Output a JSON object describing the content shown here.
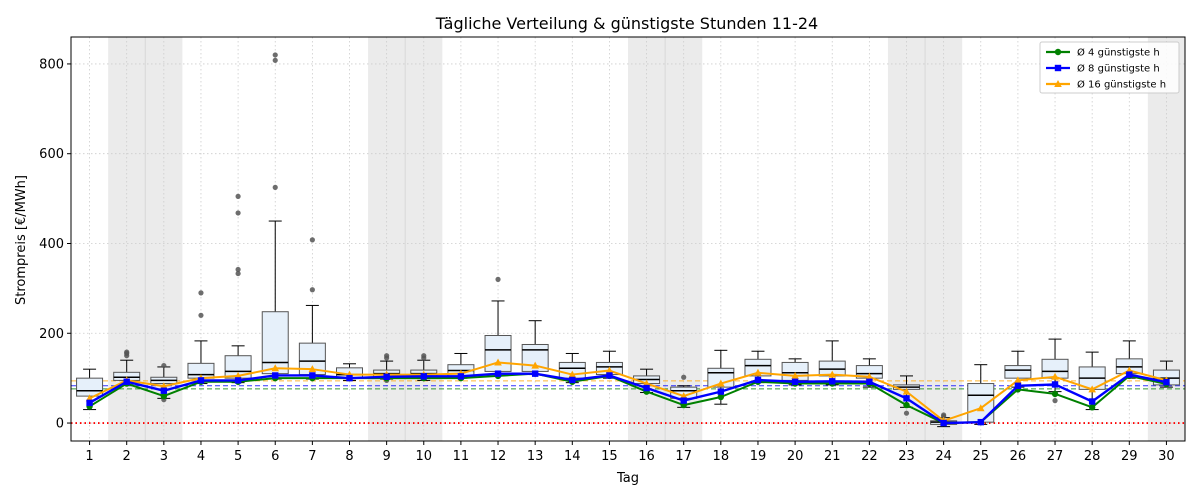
{
  "chart_data": {
    "type": "box",
    "title": "Tägliche Verteilung & günstigste Stunden 11-24",
    "xlabel": "Tag",
    "ylabel": "Strompreis [€/MWh]",
    "xlim": [
      0.5,
      30.5
    ],
    "ylim": [
      -40,
      860
    ],
    "yticks": [
      0,
      200,
      400,
      600,
      800
    ],
    "days": [
      1,
      2,
      3,
      4,
      5,
      6,
      7,
      8,
      9,
      10,
      11,
      12,
      13,
      14,
      15,
      16,
      17,
      18,
      19,
      20,
      21,
      22,
      23,
      24,
      25,
      26,
      27,
      28,
      29,
      30
    ],
    "weekend_bands": [
      [
        1.5,
        3.5
      ],
      [
        8.5,
        10.5
      ],
      [
        15.5,
        17.5
      ],
      [
        22.5,
        24.5
      ],
      [
        29.5,
        30.5
      ]
    ],
    "weekend_lines": [
      2.5,
      9.5,
      16.5,
      23.5
    ],
    "grid": true,
    "legend_position": "top-right",
    "colors": {
      "box_fill": "#e6f0fa",
      "box_edge": "#555555",
      "median": "#000000",
      "weekend": "#ebebeb",
      "zero_line": "#ff0000",
      "s4": "#008000",
      "s8": "#0000ff",
      "s16": "#ffa500"
    },
    "boxes": [
      {
        "q1": 60,
        "median": 72,
        "q3": 100,
        "lo": 30,
        "hi": 120,
        "fliers": []
      },
      {
        "q1": 95,
        "median": 102,
        "q3": 113,
        "lo": 85,
        "hi": 140,
        "fliers": [
          150,
          155,
          158
        ]
      },
      {
        "q1": 88,
        "median": 95,
        "q3": 102,
        "lo": 55,
        "hi": 125,
        "fliers": [
          52,
          58,
          128
        ]
      },
      {
        "q1": 100,
        "median": 108,
        "q3": 133,
        "lo": 88,
        "hi": 183,
        "fliers": [
          240,
          290
        ]
      },
      {
        "q1": 100,
        "median": 115,
        "q3": 150,
        "lo": 90,
        "hi": 172,
        "fliers": [
          333,
          342,
          468,
          505
        ]
      },
      {
        "q1": 110,
        "median": 135,
        "q3": 248,
        "lo": 98,
        "hi": 450,
        "fliers": [
          525,
          808,
          820
        ]
      },
      {
        "q1": 108,
        "median": 138,
        "q3": 178,
        "lo": 98,
        "hi": 262,
        "fliers": [
          297,
          408
        ]
      },
      {
        "q1": 100,
        "median": 108,
        "q3": 123,
        "lo": 95,
        "hi": 132,
        "fliers": []
      },
      {
        "q1": 102,
        "median": 110,
        "q3": 118,
        "lo": 98,
        "hi": 138,
        "fliers": [
          145,
          150,
          95
        ]
      },
      {
        "q1": 100,
        "median": 110,
        "q3": 118,
        "lo": 95,
        "hi": 140,
        "fliers": [
          145,
          150
        ]
      },
      {
        "q1": 105,
        "median": 117,
        "q3": 130,
        "lo": 100,
        "hi": 155,
        "fliers": []
      },
      {
        "q1": 115,
        "median": 163,
        "q3": 195,
        "lo": 105,
        "hi": 272,
        "fliers": [
          320
        ]
      },
      {
        "q1": 115,
        "median": 163,
        "q3": 175,
        "lo": 108,
        "hi": 228,
        "fliers": []
      },
      {
        "q1": 100,
        "median": 122,
        "q3": 135,
        "lo": 90,
        "hi": 155,
        "fliers": []
      },
      {
        "q1": 108,
        "median": 125,
        "q3": 135,
        "lo": 100,
        "hi": 160,
        "fliers": []
      },
      {
        "q1": 88,
        "median": 97,
        "q3": 105,
        "lo": 68,
        "hi": 120,
        "fliers": []
      },
      {
        "q1": 55,
        "median": 72,
        "q3": 80,
        "lo": 35,
        "hi": 83,
        "fliers": [
          102
        ]
      },
      {
        "q1": 80,
        "median": 112,
        "q3": 122,
        "lo": 42,
        "hi": 162,
        "fliers": []
      },
      {
        "q1": 105,
        "median": 128,
        "q3": 142,
        "lo": 90,
        "hi": 160,
        "fliers": []
      },
      {
        "q1": 95,
        "median": 112,
        "q3": 135,
        "lo": 85,
        "hi": 143,
        "fliers": []
      },
      {
        "q1": 105,
        "median": 120,
        "q3": 138,
        "lo": 85,
        "hi": 183,
        "fliers": []
      },
      {
        "q1": 100,
        "median": 110,
        "q3": 128,
        "lo": 80,
        "hi": 143,
        "fliers": []
      },
      {
        "q1": 75,
        "median": 80,
        "q3": 85,
        "lo": 35,
        "hi": 105,
        "fliers": [
          22
        ]
      },
      {
        "q1": -3,
        "median": 2,
        "q3": 5,
        "lo": -8,
        "hi": 12,
        "fliers": [
          15,
          18
        ]
      },
      {
        "q1": 2,
        "median": 62,
        "q3": 88,
        "lo": -3,
        "hi": 130,
        "fliers": []
      },
      {
        "q1": 100,
        "median": 118,
        "q3": 128,
        "lo": 80,
        "hi": 160,
        "fliers": []
      },
      {
        "q1": 100,
        "median": 115,
        "q3": 142,
        "lo": 70,
        "hi": 187,
        "fliers": [
          50
        ]
      },
      {
        "q1": 75,
        "median": 100,
        "q3": 125,
        "lo": 30,
        "hi": 158,
        "fliers": []
      },
      {
        "q1": 110,
        "median": 125,
        "q3": 143,
        "lo": 100,
        "hi": 183,
        "fliers": []
      },
      {
        "q1": 85,
        "median": 100,
        "q3": 118,
        "lo": 80,
        "hi": 138,
        "fliers": []
      }
    ],
    "series": [
      {
        "name": "Ø 4 günstigste h",
        "key": "s4",
        "marker": "circle",
        "values": [
          37,
          88,
          60,
          92,
          92,
          100,
          100,
          100,
          100,
          100,
          100,
          105,
          110,
          92,
          105,
          70,
          40,
          58,
          92,
          88,
          88,
          88,
          40,
          0,
          2,
          75,
          65,
          35,
          105,
          87
        ]
      },
      {
        "name": "Ø 8 günstigste h",
        "key": "s8",
        "marker": "square",
        "values": [
          45,
          92,
          72,
          95,
          95,
          106,
          106,
          100,
          103,
          104,
          104,
          110,
          110,
          96,
          106,
          78,
          50,
          70,
          96,
          92,
          93,
          92,
          55,
          0,
          2,
          83,
          86,
          48,
          108,
          91
        ]
      },
      {
        "name": "Ø 16 günstigste h",
        "key": "s16",
        "marker": "triangle",
        "values": [
          55,
          95,
          82,
          100,
          105,
          122,
          120,
          108,
          108,
          108,
          110,
          135,
          128,
          108,
          117,
          88,
          60,
          88,
          112,
          105,
          108,
          103,
          70,
          5,
          33,
          95,
          103,
          75,
          117,
          95
        ]
      }
    ],
    "mean_lines": [
      {
        "key": "s4",
        "value": 76
      },
      {
        "key": "s8",
        "value": 83
      },
      {
        "key": "s16",
        "value": 94
      }
    ],
    "zero_line": 0
  }
}
